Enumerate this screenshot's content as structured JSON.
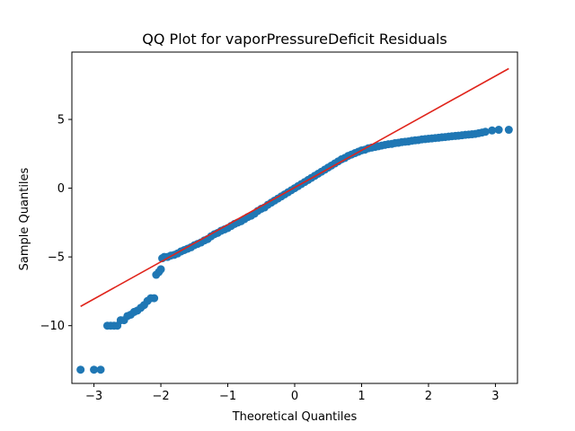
{
  "chart_data": {
    "type": "scatter",
    "title": "QQ Plot for vaporPressureDeficit Residuals",
    "xlabel": "Theoretical Quantiles",
    "ylabel": "Sample Quantiles",
    "xlim": [
      -3.33,
      3.33
    ],
    "ylim": [
      -14.2,
      9.9
    ],
    "xticks": [
      -3,
      -2,
      -1,
      0,
      1,
      2,
      3
    ],
    "yticks": [
      -10,
      -5,
      0,
      5
    ],
    "grid": false,
    "points": [
      [
        -3.2,
        -13.2
      ],
      [
        -3.0,
        -13.2
      ],
      [
        -2.9,
        -13.2
      ],
      [
        -2.8,
        -10.0
      ],
      [
        -2.75,
        -10.0
      ],
      [
        -2.7,
        -10.0
      ],
      [
        -2.65,
        -10.0
      ],
      [
        -2.6,
        -9.6
      ],
      [
        -2.55,
        -9.6
      ],
      [
        -2.5,
        -9.3
      ],
      [
        -2.45,
        -9.2
      ],
      [
        -2.4,
        -9.0
      ],
      [
        -2.35,
        -8.9
      ],
      [
        -2.3,
        -8.7
      ],
      [
        -2.25,
        -8.5
      ],
      [
        -2.2,
        -8.2
      ],
      [
        -2.15,
        -8.0
      ],
      [
        -2.1,
        -8.0
      ],
      [
        -2.07,
        -6.3
      ],
      [
        -2.03,
        -6.1
      ],
      [
        -2.0,
        -5.9
      ],
      [
        -1.98,
        -5.1
      ],
      [
        -1.95,
        -5.0
      ],
      [
        -1.9,
        -5.0
      ],
      [
        -1.85,
        -4.9
      ],
      [
        -1.8,
        -4.85
      ],
      [
        -1.75,
        -4.75
      ],
      [
        -1.7,
        -4.6
      ],
      [
        -1.65,
        -4.5
      ],
      [
        -1.6,
        -4.4
      ],
      [
        -1.55,
        -4.3
      ],
      [
        -1.5,
        -4.15
      ],
      [
        -1.45,
        -4.05
      ],
      [
        -1.4,
        -3.95
      ],
      [
        -1.35,
        -3.8
      ],
      [
        -1.3,
        -3.7
      ],
      [
        -1.25,
        -3.5
      ],
      [
        -1.2,
        -3.35
      ],
      [
        -1.15,
        -3.25
      ],
      [
        -1.1,
        -3.1
      ],
      [
        -1.05,
        -3.0
      ],
      [
        -1.0,
        -2.9
      ],
      [
        -0.95,
        -2.75
      ],
      [
        -0.9,
        -2.6
      ],
      [
        -0.85,
        -2.5
      ],
      [
        -0.8,
        -2.4
      ],
      [
        -0.75,
        -2.25
      ],
      [
        -0.7,
        -2.1
      ],
      [
        -0.65,
        -2.0
      ],
      [
        -0.6,
        -1.85
      ],
      [
        -0.55,
        -1.65
      ],
      [
        -0.5,
        -1.5
      ],
      [
        -0.45,
        -1.4
      ],
      [
        -0.4,
        -1.2
      ],
      [
        -0.35,
        -1.05
      ],
      [
        -0.3,
        -0.9
      ],
      [
        -0.25,
        -0.75
      ],
      [
        -0.2,
        -0.6
      ],
      [
        -0.15,
        -0.45
      ],
      [
        -0.1,
        -0.3
      ],
      [
        -0.05,
        -0.15
      ],
      [
        0.0,
        0.0
      ],
      [
        0.05,
        0.15
      ],
      [
        0.1,
        0.3
      ],
      [
        0.15,
        0.45
      ],
      [
        0.2,
        0.6
      ],
      [
        0.25,
        0.75
      ],
      [
        0.3,
        0.9
      ],
      [
        0.35,
        1.05
      ],
      [
        0.4,
        1.2
      ],
      [
        0.45,
        1.35
      ],
      [
        0.5,
        1.5
      ],
      [
        0.55,
        1.65
      ],
      [
        0.6,
        1.8
      ],
      [
        0.65,
        1.95
      ],
      [
        0.7,
        2.1
      ],
      [
        0.75,
        2.2
      ],
      [
        0.8,
        2.35
      ],
      [
        0.85,
        2.45
      ],
      [
        0.9,
        2.55
      ],
      [
        0.95,
        2.65
      ],
      [
        1.0,
        2.75
      ],
      [
        1.05,
        2.8
      ],
      [
        1.1,
        2.9
      ],
      [
        1.15,
        2.95
      ],
      [
        1.2,
        3.0
      ],
      [
        1.25,
        3.05
      ],
      [
        1.3,
        3.1
      ],
      [
        1.35,
        3.15
      ],
      [
        1.4,
        3.2
      ],
      [
        1.45,
        3.22
      ],
      [
        1.5,
        3.28
      ],
      [
        1.55,
        3.3
      ],
      [
        1.6,
        3.35
      ],
      [
        1.65,
        3.38
      ],
      [
        1.7,
        3.4
      ],
      [
        1.75,
        3.45
      ],
      [
        1.8,
        3.48
      ],
      [
        1.85,
        3.5
      ],
      [
        1.9,
        3.55
      ],
      [
        1.95,
        3.57
      ],
      [
        2.0,
        3.6
      ],
      [
        2.05,
        3.62
      ],
      [
        2.1,
        3.65
      ],
      [
        2.15,
        3.67
      ],
      [
        2.2,
        3.7
      ],
      [
        2.25,
        3.72
      ],
      [
        2.3,
        3.75
      ],
      [
        2.35,
        3.78
      ],
      [
        2.4,
        3.8
      ],
      [
        2.45,
        3.82
      ],
      [
        2.5,
        3.85
      ],
      [
        2.55,
        3.88
      ],
      [
        2.6,
        3.9
      ],
      [
        2.65,
        3.92
      ],
      [
        2.7,
        3.95
      ],
      [
        2.75,
        4.0
      ],
      [
        2.8,
        4.05
      ],
      [
        2.85,
        4.1
      ],
      [
        2.95,
        4.2
      ],
      [
        3.05,
        4.25
      ],
      [
        3.2,
        4.25
      ]
    ],
    "reference_line": {
      "x": [
        -3.2,
        3.2
      ],
      "y": [
        -8.6,
        8.7
      ]
    },
    "colors": {
      "points": "#1f77b4",
      "line": "#e0241b",
      "axes": "#000000",
      "background": "#ffffff"
    }
  }
}
